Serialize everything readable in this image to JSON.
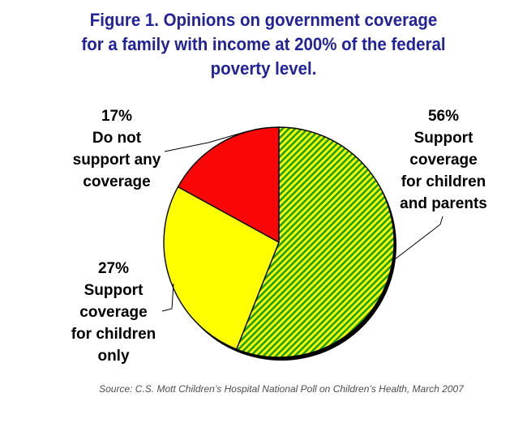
{
  "title": {
    "color": "#222299",
    "lines": [
      "Figure 1. Opinions on government coverage",
      "for a family with income at 200% of the federal",
      "poverty level."
    ]
  },
  "callouts": {
    "parents": {
      "lines": [
        "56%",
        "Support",
        "coverage",
        "for children",
        "and parents"
      ]
    },
    "children_only": {
      "lines": [
        "27%",
        "Support",
        "coverage",
        "for children",
        "only"
      ]
    },
    "none": {
      "lines": [
        "17%",
        "Do not",
        "support any",
        "coverage"
      ]
    }
  },
  "source": {
    "text": "Source: C.S. Mott Children’s Hospital National Poll on Children’s Health, March 2007"
  },
  "chart_data": {
    "type": "pie",
    "title": "Figure 1. Opinions on government coverage for a family with income at 200% of the federal poverty level.",
    "units": "percent",
    "start_angle": "12 o'clock",
    "direction": "clockwise",
    "legend": "none (direct callout labels with leader lines)",
    "outline_color": "#000000",
    "shadow": true,
    "hatch": {
      "background": "#FFFF00",
      "stripe": "#18A018"
    },
    "slices": [
      {
        "id": "support-children-and-parents",
        "label": "Support coverage for children and parents",
        "value": 56,
        "color": "hatch"
      },
      {
        "id": "support-children-only",
        "label": "Support coverage for children only",
        "value": 27,
        "color": "#FFFF00"
      },
      {
        "id": "do-not-support-any-coverage",
        "label": "Do not support any coverage",
        "value": 17,
        "color": "#FB0606"
      }
    ],
    "source": "Source: C.S. Mott Children’s Hospital National Poll on Children’s Health, March 2007"
  }
}
